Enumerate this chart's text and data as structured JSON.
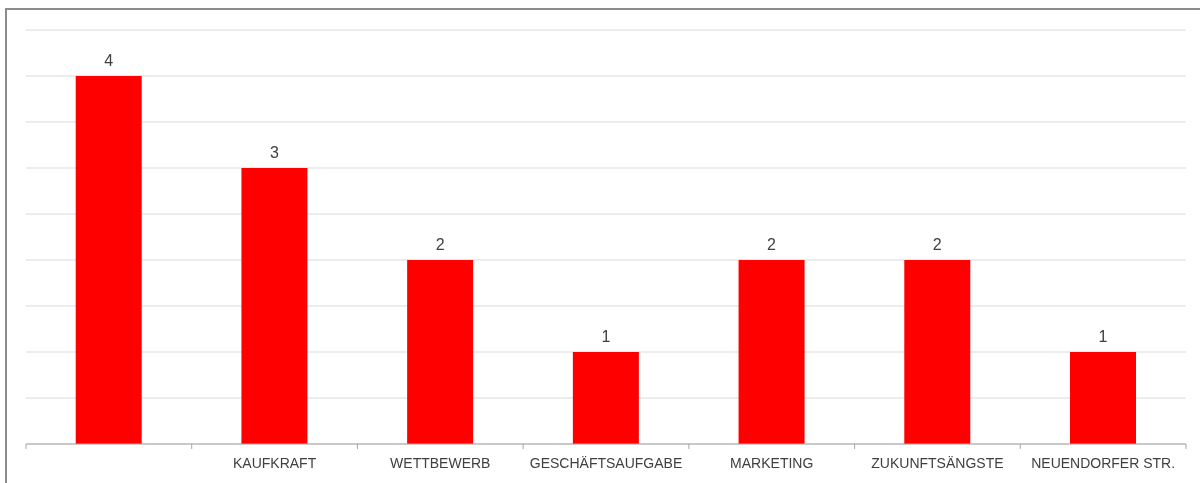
{
  "chart_data": {
    "type": "bar",
    "categories": [
      null,
      "KAUFKRAFT",
      "WETTBEWERB",
      "GESCHÄFTSAUFGABE",
      "MARKETING",
      "ZUKUNFTSÄNGSTE",
      "NEUENDORFER STR."
    ],
    "values": [
      4,
      3,
      2,
      1,
      2,
      2,
      1
    ],
    "color": "#ff0000",
    "data_labels": true,
    "ylim": [
      0,
      4.5
    ],
    "yticks": [
      {
        "value": 0,
        "label": null
      },
      {
        "value": 0.5,
        "label": null
      },
      {
        "value": 1,
        "label": null
      },
      {
        "value": 1.5,
        "label": null
      },
      {
        "value": 2,
        "label": null
      },
      {
        "value": 2.5,
        "label": null
      },
      {
        "value": 3,
        "label": null
      },
      {
        "value": 3.5,
        "label": null
      },
      {
        "value": 4,
        "label": null
      },
      {
        "value": 4.5,
        "label": null
      }
    ],
    "grid": "y",
    "tick_labels": "x"
  }
}
